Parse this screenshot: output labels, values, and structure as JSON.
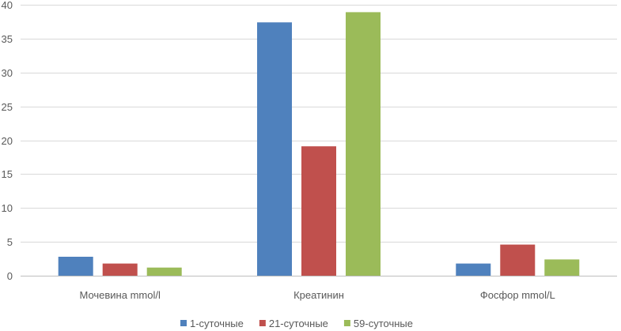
{
  "chart_data": {
    "type": "bar",
    "categories": [
      "Мочевина mmol/l",
      "Креатинин",
      "Фосфор mmol/L"
    ],
    "series": [
      {
        "name": "1-суточные",
        "values": [
          2.8,
          37.4,
          1.8
        ],
        "color": "#4f81bd"
      },
      {
        "name": "21-суточные",
        "values": [
          1.8,
          19.1,
          4.6
        ],
        "color": "#c0504d"
      },
      {
        "name": "59-суточные",
        "values": [
          1.2,
          38.9,
          2.4
        ],
        "color": "#9bbb59"
      }
    ],
    "ylim": [
      0,
      40
    ],
    "yticks": [
      0,
      5,
      10,
      15,
      20,
      25,
      30,
      35,
      40
    ],
    "grid": true,
    "legend": "bottom"
  }
}
